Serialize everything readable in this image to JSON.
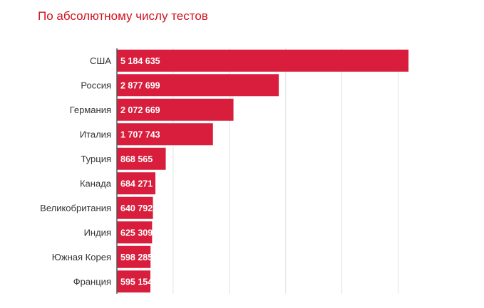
{
  "chart_data": {
    "type": "bar",
    "orientation": "horizontal",
    "title": "По абсолютному числу тестов",
    "categories": [
      "США",
      "Россия",
      "Германия",
      "Италия",
      "Турция",
      "Канада",
      "Великобритания",
      "Индия",
      "Южная Корея",
      "Франция"
    ],
    "values": [
      5184635,
      2877699,
      2072669,
      1707743,
      868565,
      684271,
      640792,
      625309,
      598285,
      595154
    ],
    "value_labels": [
      "5 184 635",
      "2 877 699",
      "2 072 669",
      "1 707 743",
      "868 565",
      "684 271",
      "640 792",
      "625 309",
      "598 285",
      "595 154"
    ],
    "xlim": [
      0,
      5500000
    ],
    "grid": true,
    "legend": "none",
    "bar_color": "#d81e3c",
    "title_color": "#d0121f"
  }
}
